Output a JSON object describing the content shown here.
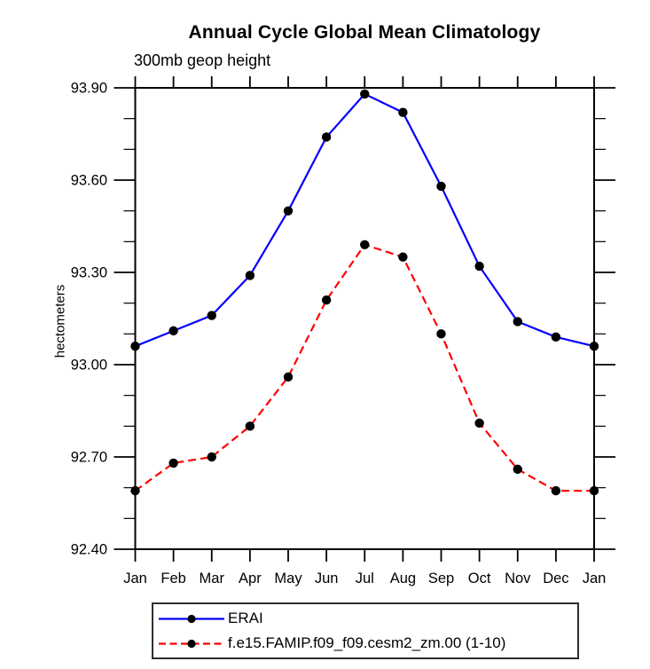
{
  "chart_data": {
    "type": "line",
    "title": "Annual Cycle Global Mean Climatology",
    "subtitle": "300mb geop height",
    "xlabel": "",
    "ylabel": "hectometers",
    "categories": [
      "Jan",
      "Feb",
      "Mar",
      "Apr",
      "May",
      "Jun",
      "Jul",
      "Aug",
      "Sep",
      "Oct",
      "Nov",
      "Dec",
      "Jan"
    ],
    "ylim": [
      92.4,
      93.9
    ],
    "ytick_labels": [
      "92.40",
      "92.70",
      "93.00",
      "93.30",
      "93.60",
      "93.90"
    ],
    "ytick_major_step": 0.3,
    "ytick_minor_step": 0.1,
    "grid": false,
    "legend_position": "bottom",
    "series": [
      {
        "name": "ERAI",
        "color": "#0000ff",
        "line_style": "solid",
        "marker": "filled-circle",
        "marker_color": "#000000",
        "values": [
          93.06,
          93.11,
          93.16,
          93.29,
          93.5,
          93.74,
          93.88,
          93.82,
          93.58,
          93.32,
          93.14,
          93.09,
          93.06
        ]
      },
      {
        "name": "f.e15.FAMIP.f09_f09.cesm2_zm.00 (1-10)",
        "color": "#ff0000",
        "line_style": "dashed",
        "marker": "filled-circle",
        "marker_color": "#000000",
        "values": [
          92.59,
          92.68,
          92.7,
          92.8,
          92.96,
          93.21,
          93.39,
          93.35,
          93.1,
          92.81,
          92.66,
          92.59,
          92.59
        ]
      }
    ]
  },
  "colors": {
    "axis": "#000000",
    "text": "#000000",
    "background": "#ffffff"
  }
}
